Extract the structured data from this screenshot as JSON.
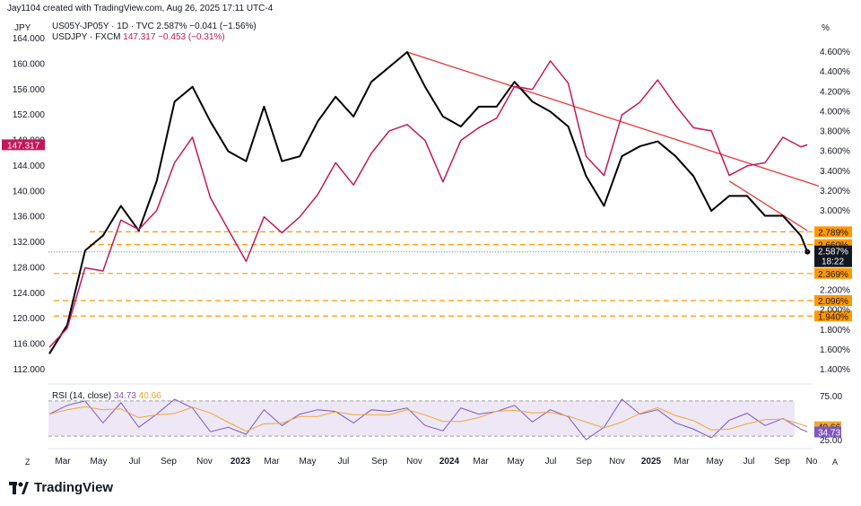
{
  "header": {
    "credit": "Jay1104 created with TradingView.com, Aug 26, 2025 17:11 UTC-4",
    "left_axis_unit": "JPY",
    "right_axis_unit": "%",
    "corner_left": "Z",
    "corner_right": "A"
  },
  "legend": [
    {
      "symbol": "US05Y-JP05Y · 1D · TVC",
      "value": "2.587%",
      "change": "−0.041 (−1.56%)"
    },
    {
      "symbol": "USDJPY · FXCM",
      "value": "147.317",
      "change": "−0.453 (−0.31%)"
    }
  ],
  "rsi_legend": {
    "label": "RSI (14, close)",
    "rsi": "34.73",
    "ma": "40.66"
  },
  "logo": "TradingView",
  "colors": {
    "spread": "#000000",
    "usdjpy": "#c2185b",
    "trend": "#e53935",
    "support": "#ff9800",
    "rsi": "#7e57c2",
    "rsi_ma": "#f0a830",
    "rsi_band": "#ede7f6"
  },
  "chart_data": {
    "type": "line",
    "x_tick_labels": [
      "Mar",
      "May",
      "Jul",
      "Sep",
      "Nov",
      "2023",
      "Mar",
      "May",
      "Jul",
      "Sep",
      "Nov",
      "2024",
      "Mar",
      "May",
      "Jul",
      "Sep",
      "Nov",
      "2025",
      "Mar",
      "May",
      "Jul",
      "Sep",
      "No"
    ],
    "left_axis": {
      "label": "JPY",
      "range": [
        110,
        166
      ],
      "ticks": [
        "164.000",
        "160.000",
        "156.000",
        "152.000",
        "148.000",
        "144.000",
        "140.000",
        "136.000",
        "132.000",
        "128.000",
        "124.000",
        "120.000",
        "116.000",
        "112.000"
      ]
    },
    "right_axis": {
      "label": "%",
      "range": [
        1.3,
        4.8
      ],
      "ticks": [
        "4.600%",
        "4.400%",
        "4.200%",
        "4.000%",
        "3.800%",
        "3.600%",
        "3.400%",
        "3.200%",
        "3.000%",
        "2.200%",
        "2.000%",
        "1.800%",
        "1.600%",
        "1.400%"
      ]
    },
    "series": [
      {
        "name": "US05Y-JP05Y · 1D · TVC",
        "axis": "right",
        "points": [
          [
            "2022-02",
            1.56
          ],
          [
            "2022-03",
            1.85
          ],
          [
            "2022-04",
            2.6
          ],
          [
            "2022-05",
            2.75
          ],
          [
            "2022-06",
            3.05
          ],
          [
            "2022-07",
            2.8
          ],
          [
            "2022-08",
            3.3
          ],
          [
            "2022-09",
            4.1
          ],
          [
            "2022-10",
            4.25
          ],
          [
            "2022-11",
            3.9
          ],
          [
            "2022-12",
            3.6
          ],
          [
            "2023-01",
            3.5
          ],
          [
            "2023-02",
            4.05
          ],
          [
            "2023-03",
            3.5
          ],
          [
            "2023-04",
            3.55
          ],
          [
            "2023-05",
            3.9
          ],
          [
            "2023-06",
            4.15
          ],
          [
            "2023-07",
            3.95
          ],
          [
            "2023-08",
            4.3
          ],
          [
            "2023-09",
            4.45
          ],
          [
            "2023-10",
            4.6
          ],
          [
            "2023-11",
            4.25
          ],
          [
            "2023-12",
            3.95
          ],
          [
            "2024-01",
            3.85
          ],
          [
            "2024-02",
            4.05
          ],
          [
            "2024-03",
            4.05
          ],
          [
            "2024-04",
            4.3
          ],
          [
            "2024-05",
            4.1
          ],
          [
            "2024-06",
            4.0
          ],
          [
            "2024-07",
            3.85
          ],
          [
            "2024-08",
            3.35
          ],
          [
            "2024-09",
            3.05
          ],
          [
            "2024-10",
            3.55
          ],
          [
            "2024-11",
            3.65
          ],
          [
            "2024-12",
            3.7
          ],
          [
            "2025-01",
            3.55
          ],
          [
            "2025-02",
            3.35
          ],
          [
            "2025-03",
            3.0
          ],
          [
            "2025-04",
            3.15
          ],
          [
            "2025-05",
            3.15
          ],
          [
            "2025-06",
            2.95
          ],
          [
            "2025-07",
            2.95
          ],
          [
            "2025-08",
            2.75
          ],
          [
            "2025-08-26",
            2.587
          ]
        ]
      },
      {
        "name": "USDJPY · FXCM",
        "axis": "left",
        "points": [
          [
            "2022-02",
            115.5
          ],
          [
            "2022-03",
            118.5
          ],
          [
            "2022-04",
            128
          ],
          [
            "2022-05",
            127.5
          ],
          [
            "2022-06",
            135.5
          ],
          [
            "2022-07",
            134
          ],
          [
            "2022-08",
            137
          ],
          [
            "2022-09",
            144.5
          ],
          [
            "2022-10",
            148.5
          ],
          [
            "2022-11",
            139
          ],
          [
            "2022-12",
            134
          ],
          [
            "2023-01",
            129
          ],
          [
            "2023-02",
            136
          ],
          [
            "2023-03",
            133.5
          ],
          [
            "2023-04",
            136
          ],
          [
            "2023-05",
            139.5
          ],
          [
            "2023-06",
            144.5
          ],
          [
            "2023-07",
            141
          ],
          [
            "2023-08",
            146
          ],
          [
            "2023-09",
            149.5
          ],
          [
            "2023-10",
            150.5
          ],
          [
            "2023-11",
            148
          ],
          [
            "2023-12",
            141.5
          ],
          [
            "2024-01",
            148
          ],
          [
            "2024-02",
            150
          ],
          [
            "2024-03",
            151.5
          ],
          [
            "2024-04",
            156.5
          ],
          [
            "2024-05",
            156
          ],
          [
            "2024-06",
            160.5
          ],
          [
            "2024-07",
            157
          ],
          [
            "2024-08",
            145.5
          ],
          [
            "2024-09",
            142.5
          ],
          [
            "2024-10",
            152
          ],
          [
            "2024-11",
            154
          ],
          [
            "2024-12",
            157.5
          ],
          [
            "2025-01",
            153.5
          ],
          [
            "2025-02",
            150
          ],
          [
            "2025-03",
            149.5
          ],
          [
            "2025-04",
            142.5
          ],
          [
            "2025-05",
            144
          ],
          [
            "2025-06",
            144.5
          ],
          [
            "2025-07",
            148.5
          ],
          [
            "2025-08",
            147
          ],
          [
            "2025-08-26",
            147.317
          ]
        ]
      }
    ],
    "trend_lines": [
      {
        "axis": "right",
        "from": [
          "2023-10",
          4.6
        ],
        "to": [
          "2025-09-15",
          3.25
        ]
      },
      {
        "axis": "right",
        "from": [
          "2025-04",
          3.3
        ],
        "to": [
          "2025-08-26",
          2.8
        ]
      }
    ],
    "support_levels": [
      "2.789%",
      "2.660%",
      "2.369%",
      "2.096%",
      "1.940%"
    ],
    "current_labels": {
      "usdjpy": "147.317",
      "spread": "2.587%",
      "countdown": "18:22"
    },
    "rsi": {
      "label": "RSI (14, close)",
      "range": [
        15,
        85
      ],
      "ticks": [
        "75.00",
        "25.00"
      ],
      "band": [
        30,
        70
      ],
      "current": "34.73",
      "ma_current": "40.66",
      "points": [
        [
          "2022-02",
          55
        ],
        [
          "2022-03",
          65
        ],
        [
          "2022-04",
          70
        ],
        [
          "2022-05",
          45
        ],
        [
          "2022-06",
          68
        ],
        [
          "2022-07",
          40
        ],
        [
          "2022-08",
          55
        ],
        [
          "2022-09",
          72
        ],
        [
          "2022-10",
          62
        ],
        [
          "2022-11",
          35
        ],
        [
          "2022-12",
          40
        ],
        [
          "2023-01",
          32
        ],
        [
          "2023-02",
          60
        ],
        [
          "2023-03",
          42
        ],
        [
          "2023-04",
          55
        ],
        [
          "2023-05",
          60
        ],
        [
          "2023-06",
          58
        ],
        [
          "2023-07",
          45
        ],
        [
          "2023-08",
          60
        ],
        [
          "2023-09",
          58
        ],
        [
          "2023-10",
          62
        ],
        [
          "2023-11",
          42
        ],
        [
          "2023-12",
          36
        ],
        [
          "2024-01",
          62
        ],
        [
          "2024-02",
          55
        ],
        [
          "2024-03",
          58
        ],
        [
          "2024-04",
          65
        ],
        [
          "2024-05",
          46
        ],
        [
          "2024-06",
          60
        ],
        [
          "2024-07",
          52
        ],
        [
          "2024-08",
          26
        ],
        [
          "2024-09",
          40
        ],
        [
          "2024-10",
          72
        ],
        [
          "2024-11",
          55
        ],
        [
          "2024-12",
          60
        ],
        [
          "2025-01",
          45
        ],
        [
          "2025-02",
          38
        ],
        [
          "2025-03",
          28
        ],
        [
          "2025-04",
          48
        ],
        [
          "2025-05",
          56
        ],
        [
          "2025-06",
          42
        ],
        [
          "2025-07",
          50
        ],
        [
          "2025-08",
          38
        ],
        [
          "2025-08-26",
          34.73
        ]
      ]
    }
  }
}
